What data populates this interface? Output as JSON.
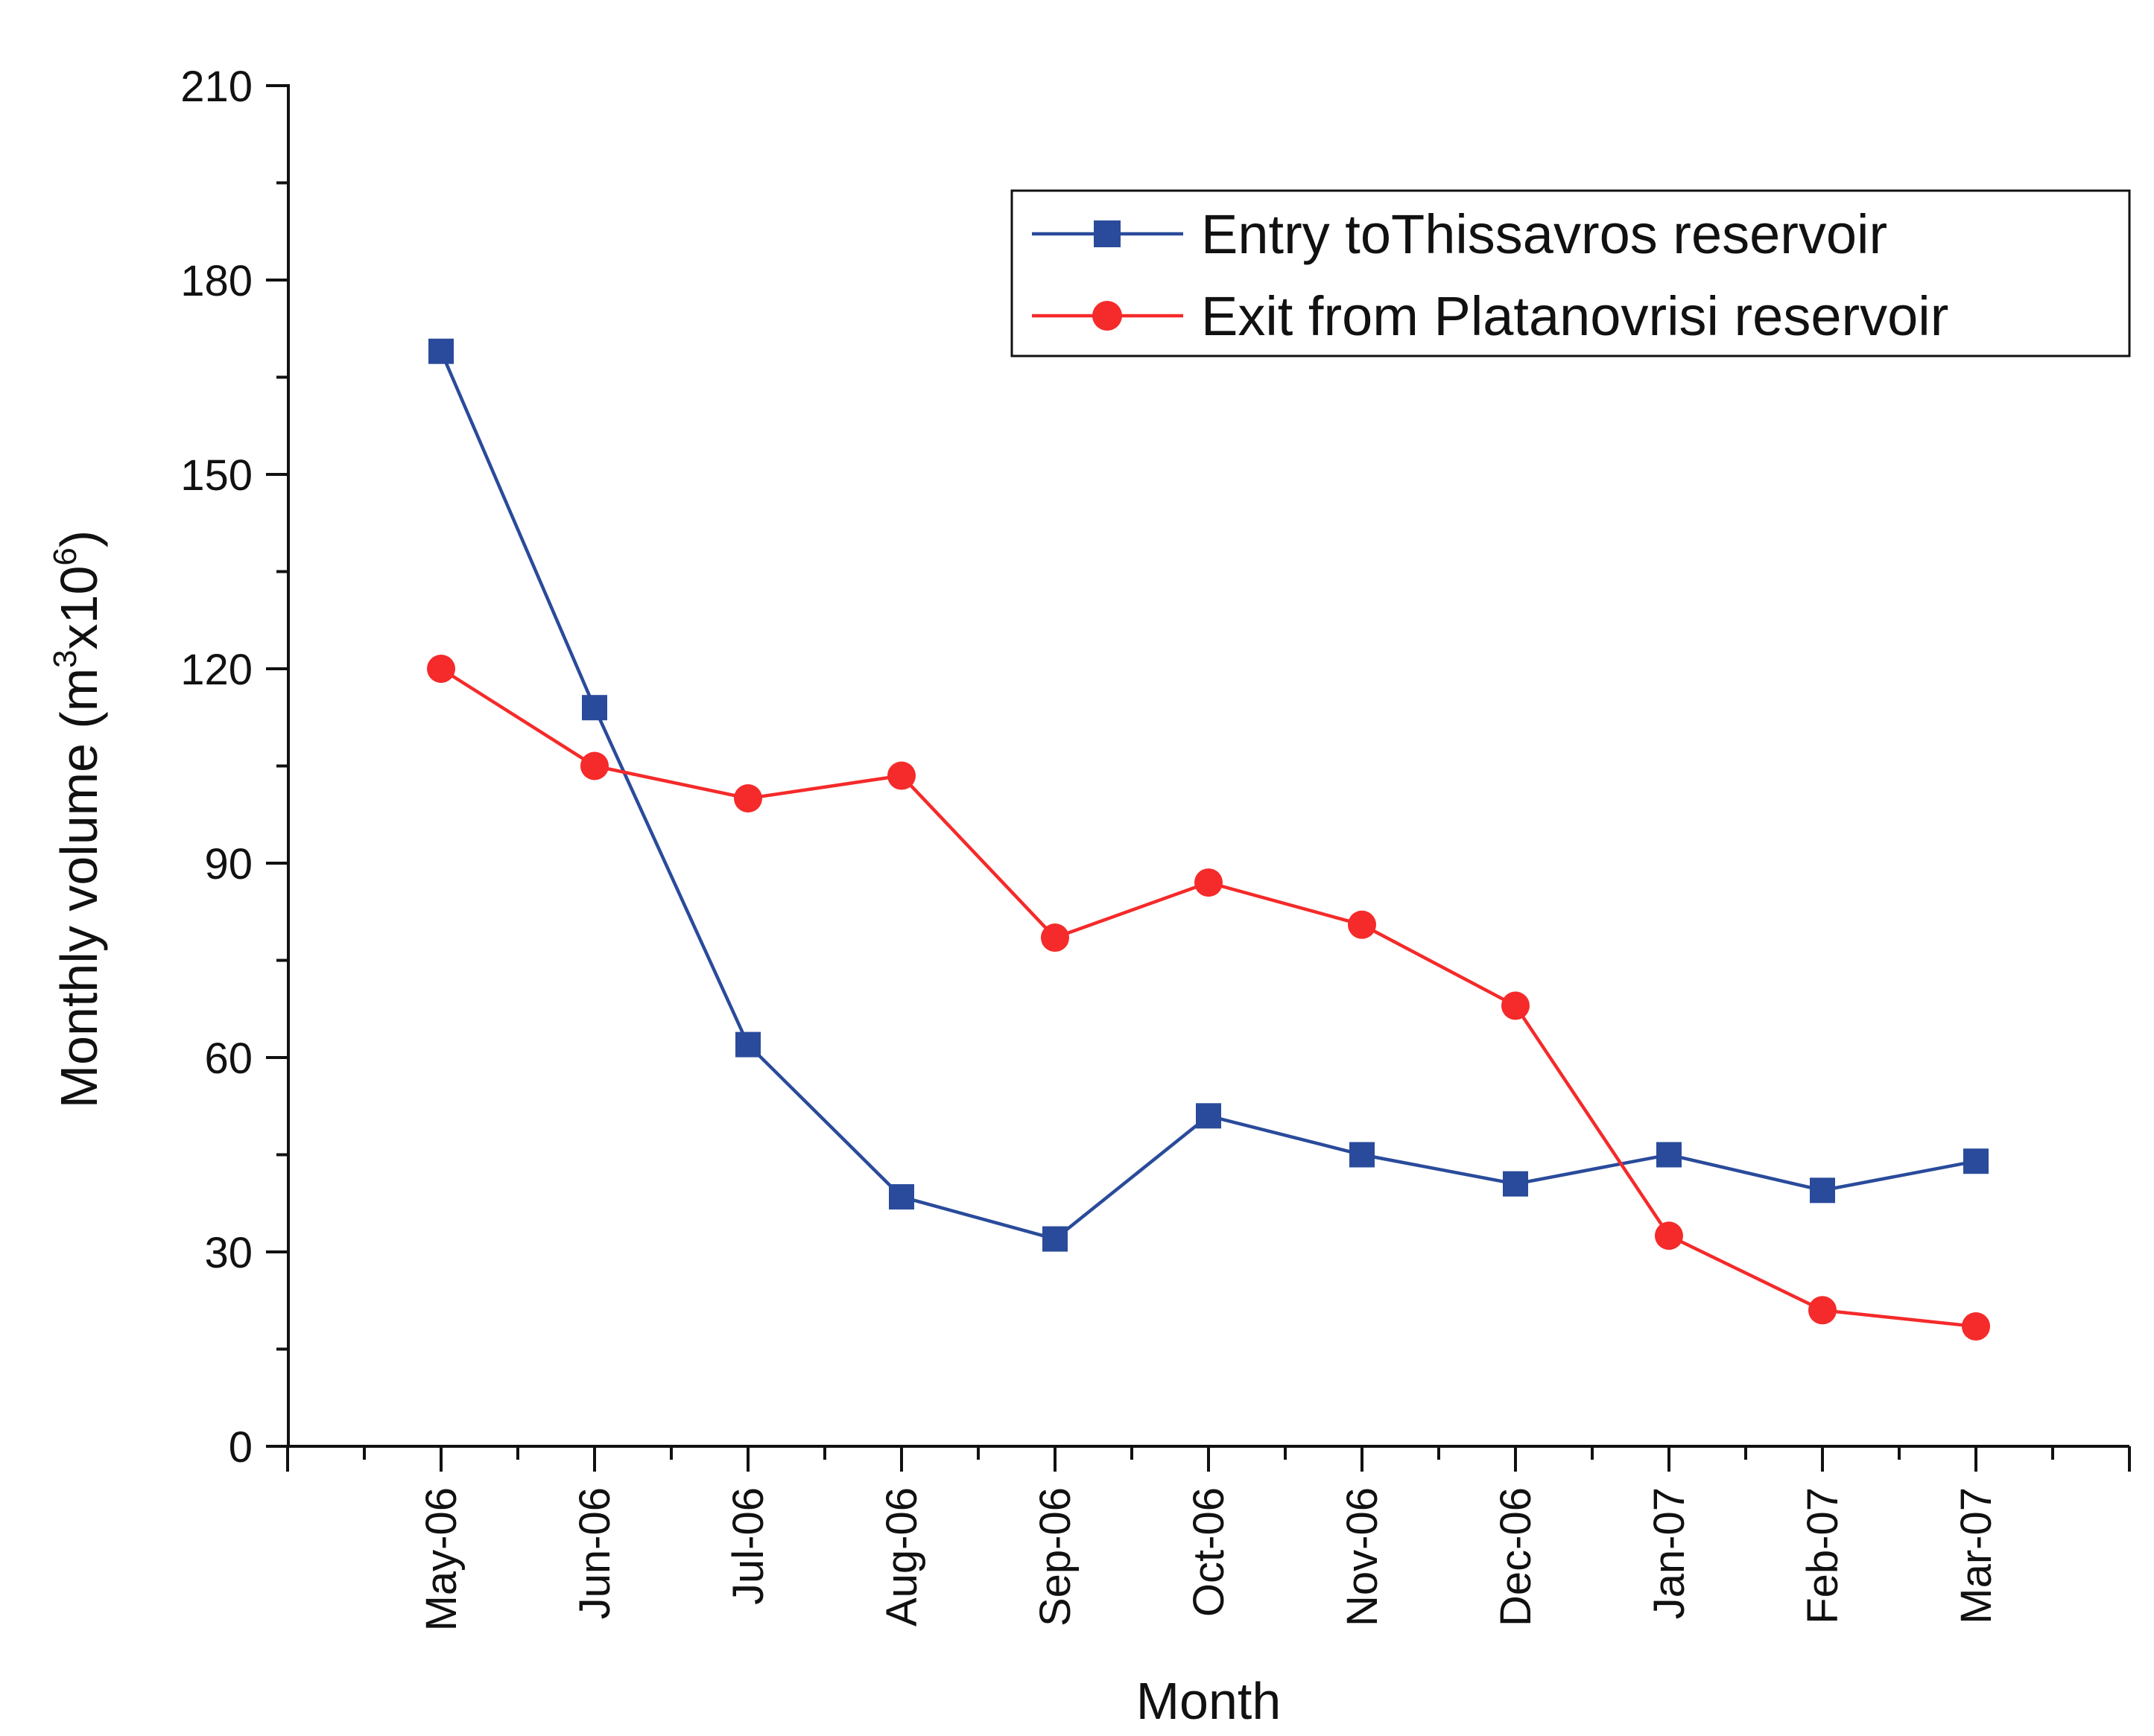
{
  "chart_data": {
    "type": "line",
    "title": "",
    "xlabel": "Month",
    "ylabel": {
      "prefix": "Monthly volume (m",
      "sup1": "3",
      "middle": "x10",
      "sup2": "6",
      "suffix": ")"
    },
    "ylim": [
      0,
      210
    ],
    "yticks": [
      "0",
      "30",
      "60",
      "90",
      "120",
      "150",
      "180",
      "210"
    ],
    "categories": [
      "May-06",
      "Jun-06",
      "Jul-06",
      "Aug-06",
      "Sep-06",
      "Oct-06",
      "Nov-06",
      "Dec-06",
      "Jan-07",
      "Feb-07",
      "Mar-07"
    ],
    "legend_position": "top-right",
    "series": [
      {
        "name": "Entry toThissavros reservoir",
        "color": "#2a4b9b",
        "marker": "square",
        "values": [
          169,
          114,
          62,
          38.5,
          32,
          51,
          45,
          40.5,
          45,
          39.5,
          44
        ]
      },
      {
        "name": "Exit from Platanovrisi reservoir",
        "color": "#f52a2a",
        "marker": "circle",
        "values": [
          120,
          105,
          100,
          103.5,
          78.5,
          87,
          80.5,
          68,
          32.5,
          21,
          18.5
        ]
      }
    ]
  }
}
